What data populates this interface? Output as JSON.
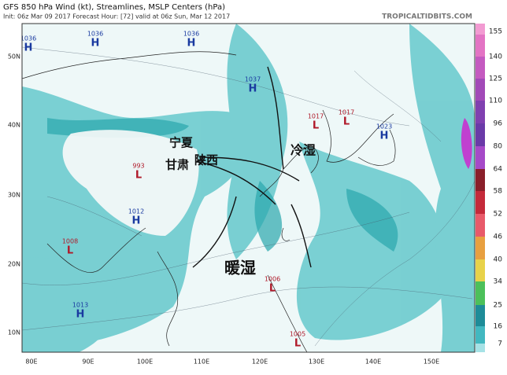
{
  "header": {
    "title": "GFS 850 hPa Wind (kt), Streamlines, MSLP Centers (hPa)",
    "subtitle": "Init: 06z Mar 09 2017    Forecast Hour: [72]    valid at 06z Sun, Mar 12 2017",
    "watermark": "TROPICALTIDBITS.COM"
  },
  "latitude_labels": [
    "50N",
    "40N",
    "30N",
    "20N",
    "10N"
  ],
  "longitude_labels": [
    "80E",
    "90E",
    "100E",
    "110E",
    "120E",
    "130E",
    "140E",
    "150E"
  ],
  "colorbar_labels": [
    "155",
    "140",
    "125",
    "110",
    "96",
    "80",
    "64",
    "58",
    "52",
    "46",
    "40",
    "34",
    "25",
    "16",
    "7"
  ],
  "pressure_centers": [
    {
      "value": "1036",
      "kind": "H"
    },
    {
      "value": "1036",
      "kind": "H"
    },
    {
      "value": "1036",
      "kind": "H"
    },
    {
      "value": "1037",
      "kind": "H"
    },
    {
      "value": "1017",
      "kind": "L"
    },
    {
      "value": "1017",
      "kind": "L"
    },
    {
      "value": "1023",
      "kind": "H"
    },
    {
      "value": "993",
      "kind": "L"
    },
    {
      "value": "1012",
      "kind": "H"
    },
    {
      "value": "1008",
      "kind": "L"
    },
    {
      "value": "1013",
      "kind": "H"
    },
    {
      "value": "1006",
      "kind": "L"
    },
    {
      "value": "1005",
      "kind": "L"
    }
  ],
  "annotations": [
    "宁夏",
    "陕西",
    "甘肃",
    "冷湿",
    "暖湿"
  ]
}
